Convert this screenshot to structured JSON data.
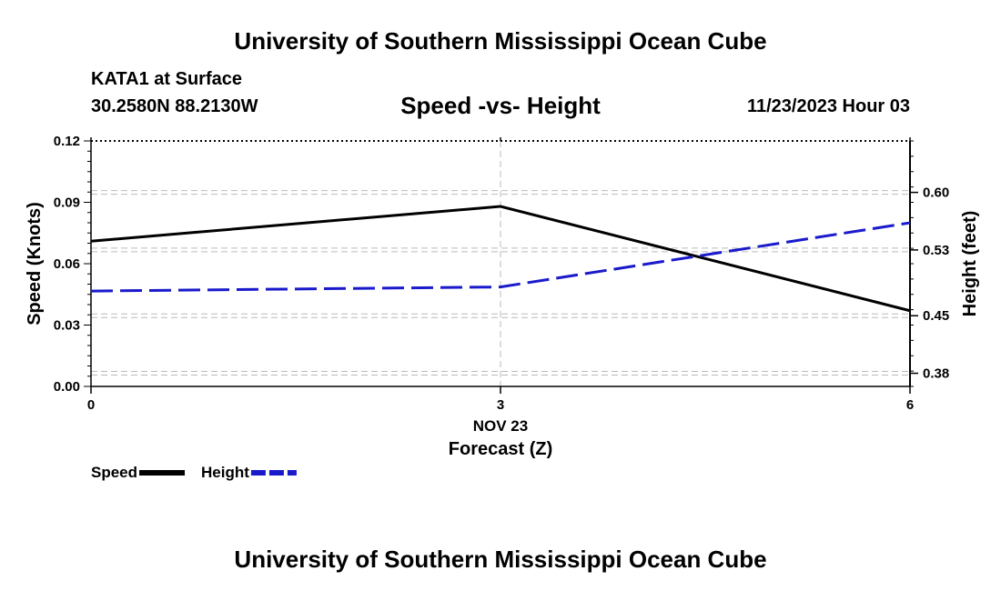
{
  "header": {
    "title": "University of Southern Mississippi Ocean Cube",
    "station": "KATA1 at Surface",
    "coordinates": "30.2580N  88.2130W",
    "datestamp": "11/23/2023 Hour 03"
  },
  "footer": {
    "title": "University of Southern Mississippi Ocean Cube"
  },
  "colors": {
    "speed": "#000000",
    "height": "#1a1acc",
    "grid": "#bbbbbb"
  },
  "chart_data": {
    "type": "line",
    "title": "Speed -vs- Height",
    "xlabel": "Forecast (Z)",
    "xsublabel": "NOV 23",
    "ylabel": "Speed (Knots)",
    "y2label": "Height (feet)",
    "x": [
      0,
      3,
      6
    ],
    "x_ticks": [
      "0",
      "3",
      "6"
    ],
    "xlim": [
      0,
      6
    ],
    "ylim": [
      0,
      0.12
    ],
    "y_ticks": [
      "0.00",
      "0.03",
      "0.06",
      "0.09",
      "0.12"
    ],
    "y2lim": [
      0.364,
      0.6626
    ],
    "y2_ticks": [
      "0.38",
      "0.45",
      "0.53",
      "0.60"
    ],
    "grid": true,
    "legend_position": "bottom-left",
    "series": [
      {
        "name": "Speed",
        "axis": "left",
        "style": "solid",
        "values": [
          0.071,
          0.088,
          0.037
        ]
      },
      {
        "name": "Height",
        "axis": "right",
        "style": "dashed",
        "values": [
          0.48,
          0.485,
          0.563
        ]
      }
    ]
  }
}
